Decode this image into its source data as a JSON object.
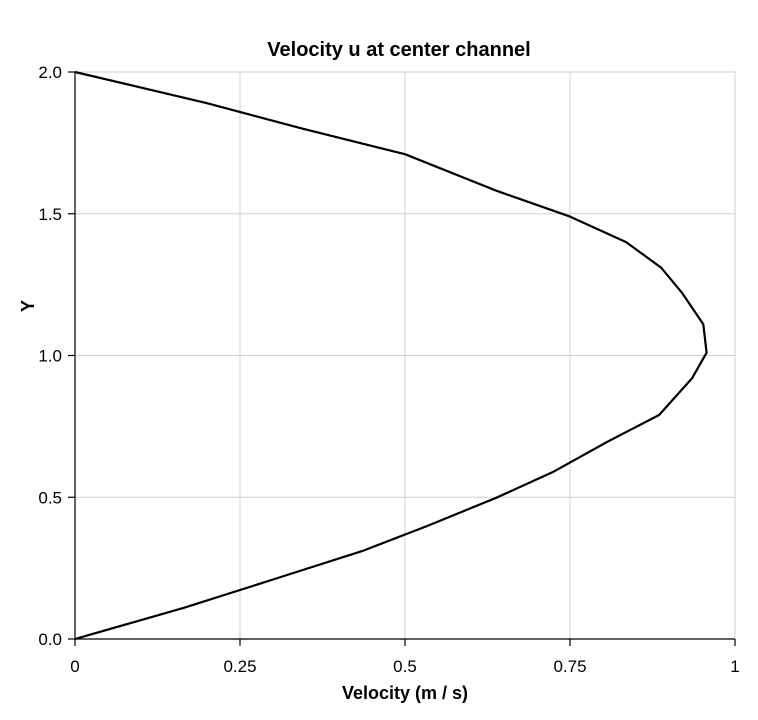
{
  "chart_data": {
    "type": "line",
    "title": "Velocity u at center channel",
    "xlabel": "Velocity (m / s)",
    "ylabel": "Y",
    "xlim": [
      0,
      1
    ],
    "ylim": [
      0,
      2
    ],
    "x_ticks": [
      0,
      0.25,
      0.5,
      0.75,
      1
    ],
    "x_tick_labels": [
      "0",
      "0.25",
      "0.5",
      "0.75",
      "1"
    ],
    "y_ticks": [
      0,
      0.5,
      1,
      1.5,
      2
    ],
    "y_tick_labels": [
      "0.0",
      "0.5",
      "1.0",
      "1.5",
      "2.0"
    ],
    "grid": true,
    "legend": false,
    "series": [
      {
        "color": "#000000",
        "points": [
          [
            0.0,
            0.0
          ],
          [
            0.165,
            0.11
          ],
          [
            0.3,
            0.21
          ],
          [
            0.435,
            0.31
          ],
          [
            0.535,
            0.4
          ],
          [
            0.64,
            0.5
          ],
          [
            0.725,
            0.59
          ],
          [
            0.81,
            0.7
          ],
          [
            0.885,
            0.79
          ],
          [
            0.935,
            0.92
          ],
          [
            0.957,
            1.01
          ],
          [
            0.952,
            1.11
          ],
          [
            0.92,
            1.22
          ],
          [
            0.888,
            1.31
          ],
          [
            0.835,
            1.4
          ],
          [
            0.75,
            1.49
          ],
          [
            0.64,
            1.58
          ],
          [
            0.5,
            1.71
          ],
          [
            0.345,
            1.8
          ],
          [
            0.2,
            1.89
          ],
          [
            0.0,
            2.0
          ]
        ]
      }
    ]
  }
}
